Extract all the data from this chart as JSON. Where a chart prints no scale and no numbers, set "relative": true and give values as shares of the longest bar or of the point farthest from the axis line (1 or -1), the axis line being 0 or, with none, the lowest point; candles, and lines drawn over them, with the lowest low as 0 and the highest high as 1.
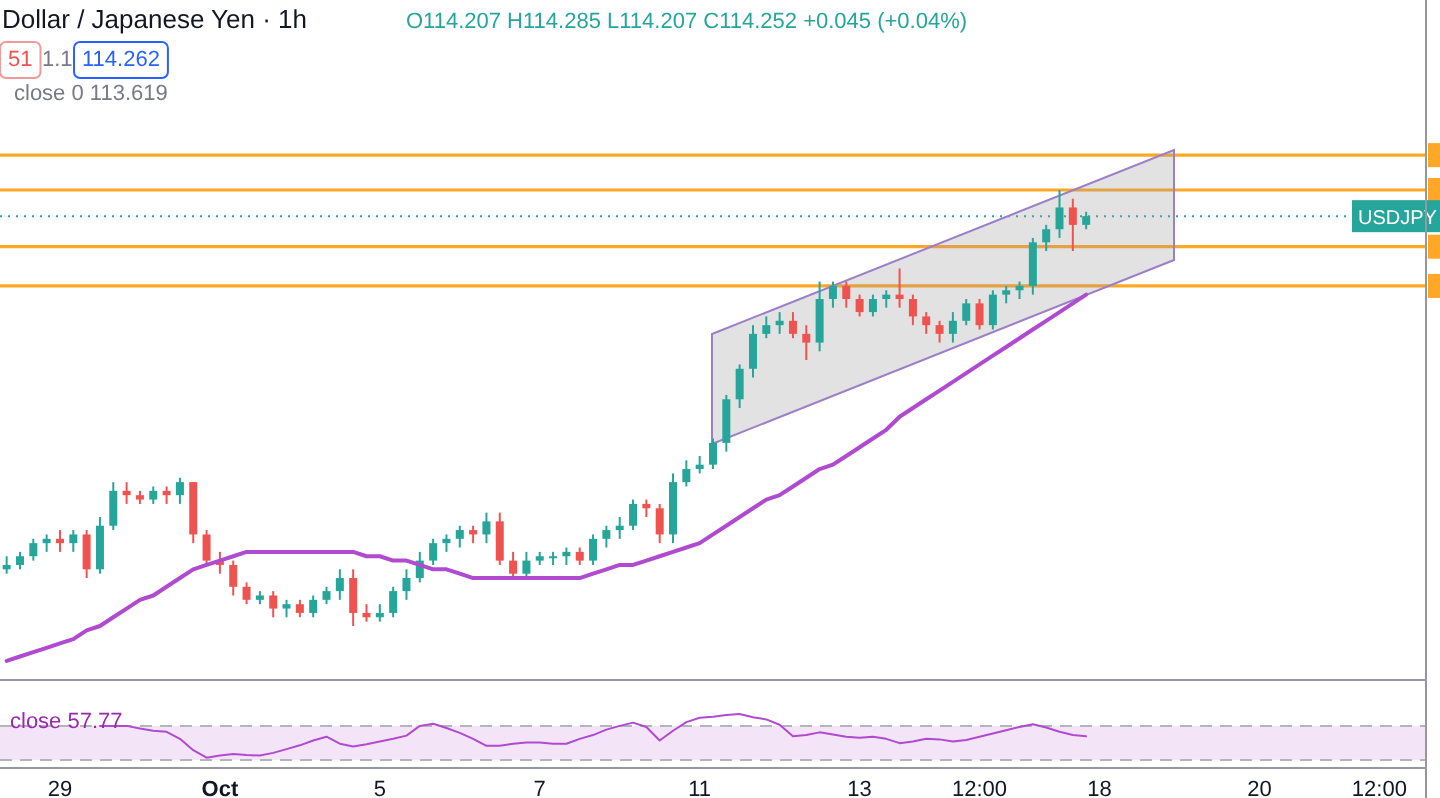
{
  "chart_data": [
    {
      "type": "candlestick",
      "title": "Dollar / Japanese Yen · 1h",
      "relative": true,
      "annotations": [
        "O114.207 H114.285 L114.207 C114.252 +0.045 (+0.04%)",
        "51",
        "1.1",
        "114.262",
        "close 0 113.619"
      ],
      "categories": [
        null,
        null,
        null,
        null,
        null,
        null,
        null,
        null,
        null,
        null,
        null,
        null,
        null,
        null,
        null,
        null,
        null,
        null,
        null,
        null,
        null,
        null,
        null,
        null,
        null,
        null,
        null,
        null,
        null,
        null,
        null,
        null,
        null,
        null,
        null,
        null,
        null,
        null,
        null,
        null,
        null,
        null,
        null,
        null,
        null,
        null,
        null,
        null,
        null,
        null,
        null,
        null,
        null,
        null,
        null,
        null,
        null,
        null,
        null,
        null,
        null,
        null,
        null,
        null,
        null,
        null,
        null,
        null,
        null,
        null,
        null,
        null,
        null,
        null,
        null,
        null,
        null,
        null,
        null,
        null,
        null,
        null,
        null,
        null,
        null,
        null,
        null,
        null,
        null,
        null,
        null,
        null,
        null,
        null,
        null,
        null,
        null,
        null,
        null,
        null,
        null,
        null,
        null,
        null,
        null,
        null,
        null
      ],
      "ohlc": [
        [
          0.13,
          0.16,
          0.12,
          0.14
        ],
        [
          0.14,
          0.17,
          0.13,
          0.16
        ],
        [
          0.16,
          0.2,
          0.15,
          0.19
        ],
        [
          0.19,
          0.21,
          0.17,
          0.2
        ],
        [
          0.2,
          0.22,
          0.17,
          0.19
        ],
        [
          0.19,
          0.22,
          0.17,
          0.21
        ],
        [
          0.21,
          0.22,
          0.11,
          0.13
        ],
        [
          0.13,
          0.25,
          0.12,
          0.23
        ],
        [
          0.23,
          0.33,
          0.22,
          0.31
        ],
        [
          0.31,
          0.33,
          0.28,
          0.3
        ],
        [
          0.3,
          0.31,
          0.28,
          0.29
        ],
        [
          0.29,
          0.32,
          0.28,
          0.31
        ],
        [
          0.31,
          0.32,
          0.28,
          0.3
        ],
        [
          0.3,
          0.34,
          0.28,
          0.33
        ],
        [
          0.33,
          0.33,
          0.19,
          0.21
        ],
        [
          0.21,
          0.22,
          0.14,
          0.15
        ],
        [
          0.15,
          0.17,
          0.12,
          0.14
        ],
        [
          0.14,
          0.15,
          0.07,
          0.09
        ],
        [
          0.09,
          0.1,
          0.05,
          0.06
        ],
        [
          0.06,
          0.08,
          0.05,
          0.07
        ],
        [
          0.07,
          0.08,
          0.02,
          0.04
        ],
        [
          0.04,
          0.06,
          0.02,
          0.05
        ],
        [
          0.05,
          0.06,
          0.02,
          0.03
        ],
        [
          0.03,
          0.07,
          0.02,
          0.06
        ],
        [
          0.06,
          0.09,
          0.05,
          0.08
        ],
        [
          0.08,
          0.13,
          0.06,
          0.11
        ],
        [
          0.11,
          0.13,
          0,
          0.03
        ],
        [
          0.03,
          0.05,
          0.01,
          0.02
        ],
        [
          0.02,
          0.05,
          0.01,
          0.03
        ],
        [
          0.03,
          0.09,
          0.02,
          0.08
        ],
        [
          0.08,
          0.13,
          0.06,
          0.11
        ],
        [
          0.11,
          0.17,
          0.1,
          0.15
        ],
        [
          0.15,
          0.2,
          0.14,
          0.19
        ],
        [
          0.19,
          0.21,
          0.17,
          0.2
        ],
        [
          0.2,
          0.23,
          0.18,
          0.22
        ],
        [
          0.22,
          0.23,
          0.19,
          0.21
        ],
        [
          0.21,
          0.26,
          0.19,
          0.24
        ],
        [
          0.24,
          0.26,
          0.14,
          0.15
        ],
        [
          0.15,
          0.17,
          0.11,
          0.12
        ],
        [
          0.12,
          0.17,
          0.11,
          0.15
        ],
        [
          0.15,
          0.17,
          0.14,
          0.16
        ],
        [
          0.16,
          0.17,
          0.14,
          0.16
        ],
        [
          0.16,
          0.18,
          0.14,
          0.17
        ],
        [
          0.17,
          0.18,
          0.14,
          0.15
        ],
        [
          0.15,
          0.21,
          0.14,
          0.2
        ],
        [
          0.2,
          0.23,
          0.18,
          0.22
        ],
        [
          0.22,
          0.25,
          0.2,
          0.23
        ],
        [
          0.23,
          0.29,
          0.22,
          0.28
        ],
        [
          0.28,
          0.29,
          0.25,
          0.27
        ],
        [
          0.27,
          0.28,
          0.19,
          0.21
        ],
        [
          0.21,
          0.35,
          0.19,
          0.33
        ],
        [
          0.33,
          0.38,
          0.32,
          0.36
        ],
        [
          0.36,
          0.39,
          0.35,
          0.37
        ],
        [
          0.37,
          0.43,
          0.36,
          0.42
        ],
        [
          0.42,
          0.53,
          0.4,
          0.52
        ],
        [
          0.52,
          0.6,
          0.5,
          0.59
        ],
        [
          0.59,
          0.69,
          0.57,
          0.67
        ],
        [
          0.67,
          0.71,
          0.66,
          0.69
        ],
        [
          0.69,
          0.72,
          0.67,
          0.7
        ],
        [
          0.7,
          0.72,
          0.66,
          0.67
        ],
        [
          0.67,
          0.69,
          0.61,
          0.65
        ],
        [
          0.65,
          0.79,
          0.63,
          0.75
        ],
        [
          0.75,
          0.79,
          0.73,
          0.78
        ],
        [
          0.78,
          0.79,
          0.73,
          0.75
        ],
        [
          0.75,
          0.76,
          0.71,
          0.72
        ],
        [
          0.72,
          0.76,
          0.71,
          0.75
        ],
        [
          0.75,
          0.77,
          0.73,
          0.76
        ],
        [
          0.76,
          0.82,
          0.73,
          0.75
        ],
        [
          0.75,
          0.76,
          0.69,
          0.71
        ],
        [
          0.71,
          0.72,
          0.67,
          0.69
        ],
        [
          0.69,
          0.7,
          0.65,
          0.67
        ],
        [
          0.67,
          0.72,
          0.65,
          0.7
        ],
        [
          0.7,
          0.75,
          0.69,
          0.74
        ],
        [
          0.74,
          0.75,
          0.68,
          0.69
        ],
        [
          0.69,
          0.77,
          0.68,
          0.76
        ],
        [
          0.76,
          0.78,
          0.74,
          0.77
        ],
        [
          0.77,
          0.79,
          0.75,
          0.78
        ],
        [
          0.78,
          0.89,
          0.76,
          0.88
        ],
        [
          0.88,
          0.92,
          0.86,
          0.91
        ],
        [
          0.91,
          1,
          0.89,
          0.96
        ],
        [
          0.96,
          0.98,
          0.86,
          0.92
        ],
        [
          0.92,
          0.95,
          0.91,
          0.94
        ],
        null,
        null,
        null,
        null,
        null,
        null,
        null,
        null,
        null,
        null,
        null,
        null,
        null,
        null,
        null,
        null,
        null,
        null,
        null,
        null,
        null,
        null,
        null,
        null,
        null
      ],
      "series": [
        {
          "type": "line",
          "color": "#b04ad0",
          "values": [
            -0.08,
            -0.07,
            -0.06,
            -0.05,
            -0.04,
            -0.03,
            -0.01,
            0,
            0.02,
            0.04,
            0.06,
            0.07,
            0.09,
            0.11,
            0.13,
            0.14,
            0.15,
            0.16,
            0.17,
            0.17,
            0.17,
            0.17,
            0.17,
            0.17,
            0.17,
            0.17,
            0.17,
            0.16,
            0.16,
            0.15,
            0.15,
            0.14,
            0.13,
            0.13,
            0.12,
            0.11,
            0.11,
            0.11,
            0.11,
            0.11,
            0.11,
            0.11,
            0.11,
            0.11,
            0.12,
            0.13,
            0.14,
            0.14,
            0.15,
            0.16,
            0.17,
            0.18,
            0.19,
            0.21,
            0.23,
            0.25,
            0.27,
            0.29,
            0.3,
            0.32,
            0.34,
            0.36,
            0.37,
            0.39,
            0.41,
            0.43,
            0.45,
            0.48,
            0.5,
            0.52,
            0.54,
            0.56,
            0.58,
            0.6,
            0.62,
            0.64,
            0.66,
            0.68,
            0.7,
            0.72,
            0.74,
            0.76,
            null,
            null,
            null,
            null,
            null,
            null,
            null,
            null,
            null,
            null,
            null,
            null,
            null,
            null,
            null,
            null,
            null,
            null,
            null,
            null,
            null,
            null,
            null,
            null,
            null
          ]
        }
      ],
      "ref_lines": [
        {
          "axis": "y",
          "value": 1.08,
          "color": "#ffa726"
        },
        {
          "axis": "y",
          "value": 1.0,
          "color": "#ffa726"
        },
        {
          "axis": "y",
          "value": 0.87,
          "color": "#ffa726"
        },
        {
          "axis": "y",
          "value": 0.78,
          "color": "#ffa726"
        },
        {
          "axis": "y",
          "value": 0.94,
          "label": "USDJPY",
          "color": "#26a69a",
          "line_style": "dotted"
        }
      ]
    },
    {
      "type": "line",
      "relative": true,
      "categories": [
        null,
        null,
        null,
        null,
        "29",
        null,
        null,
        null,
        null,
        null,
        null,
        null,
        null,
        null,
        null,
        null,
        "Oct",
        null,
        null,
        null,
        null,
        null,
        null,
        null,
        null,
        null,
        null,
        null,
        "5",
        null,
        null,
        null,
        null,
        null,
        null,
        null,
        null,
        null,
        null,
        null,
        "7",
        null,
        null,
        null,
        null,
        null,
        null,
        null,
        null,
        null,
        null,
        null,
        "11",
        null,
        null,
        null,
        null,
        null,
        null,
        null,
        null,
        null,
        null,
        null,
        "13",
        null,
        null,
        null,
        null,
        null,
        null,
        null,
        null,
        "12:00",
        null,
        null,
        null,
        null,
        null,
        null,
        null,
        null,
        "18",
        null,
        null,
        null,
        null,
        null,
        null,
        null,
        null,
        null,
        null,
        null,
        "20",
        null,
        null,
        null,
        null,
        null,
        null,
        null,
        null,
        "12:00",
        null,
        null,
        null
      ],
      "annotations": [
        "close 57.77"
      ],
      "bands": [
        {
          "axis": "y",
          "from": 0.15,
          "to": 0.78,
          "color": "#f3e5f7"
        }
      ],
      "ref_lines": [
        {
          "axis": "y",
          "value": 0.15,
          "color": "#b2b5be",
          "line_style": "dashed"
        },
        {
          "axis": "y",
          "value": 0.78,
          "color": "#b2b5be",
          "line_style": "dashed"
        }
      ],
      "series": [
        {
          "color": "#b04ad0",
          "values": [
            null,
            null,
            null,
            null,
            null,
            null,
            null,
            0.78,
            0.78,
            0.78,
            0.73,
            0.69,
            0.67,
            0.54,
            0.33,
            0.19,
            0.23,
            0.26,
            0.24,
            0.23,
            0.28,
            0.35,
            0.42,
            0.51,
            0.58,
            0.45,
            0.4,
            0.44,
            0.49,
            0.54,
            0.6,
            0.78,
            0.82,
            0.74,
            0.65,
            0.54,
            0.41,
            0.41,
            0.45,
            0.47,
            0.47,
            0.45,
            0.45,
            0.54,
            0.61,
            0.71,
            0.78,
            0.84,
            0.76,
            0.51,
            0.69,
            0.85,
            0.93,
            0.95,
            0.98,
            1,
            0.94,
            0.9,
            0.8,
            0.59,
            0.61,
            0.66,
            0.62,
            0.58,
            0.56,
            0.58,
            0.54,
            0.46,
            0.49,
            0.54,
            0.53,
            0.49,
            0.52,
            0.58,
            0.64,
            0.7,
            0.76,
            0.81,
            0.75,
            0.67,
            0.61,
            0.59,
            null,
            null,
            null,
            null,
            null,
            null,
            null,
            null,
            null,
            null,
            null,
            null,
            null,
            null,
            null,
            null,
            null,
            null,
            null,
            null,
            null,
            null,
            null,
            null,
            null
          ]
        }
      ]
    }
  ]
}
